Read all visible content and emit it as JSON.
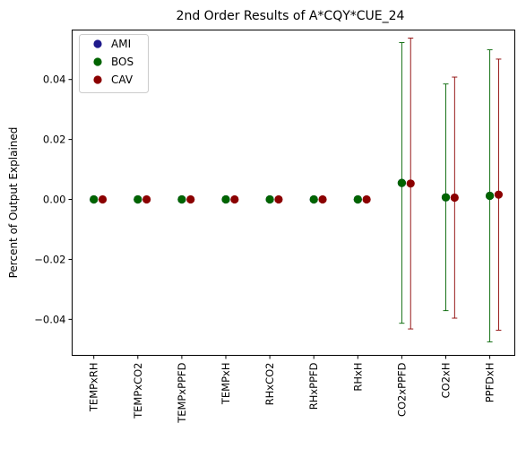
{
  "chart_data": {
    "type": "scatter",
    "title": "2nd Order Results of A*CQY*CUE_24",
    "xlabel": "",
    "ylabel": "Percent of Output Explained",
    "categories": [
      "TEMPxRH",
      "TEMPxCO2",
      "TEMPxPPFD",
      "TEMPxH",
      "RHxCO2",
      "RHxPPFD",
      "RHxH",
      "CO2xPPFD",
      "CO2xH",
      "PPFDxH"
    ],
    "ylim": [
      -0.052,
      0.0565
    ],
    "yticks": [
      -0.04,
      -0.02,
      0.0,
      0.02,
      0.04
    ],
    "ytick_labels": [
      "−0.04",
      "−0.02",
      "0.00",
      "0.02",
      "0.04"
    ],
    "grid": false,
    "legend_position": "top-left",
    "series": [
      {
        "name": "AMI",
        "color": "#1f1a8c",
        "values": [
          0,
          0,
          0,
          0,
          0,
          0,
          0,
          0.0055,
          0.0007,
          0.0012
        ],
        "error": [
          0,
          0,
          0,
          0,
          0,
          0,
          0,
          0,
          0,
          0
        ],
        "offset": 0
      },
      {
        "name": "BOS",
        "color": "#006400",
        "values": [
          0,
          0,
          0,
          0,
          0,
          0,
          0,
          0.0055,
          0.0007,
          0.0012
        ],
        "error": [
          0,
          0,
          0,
          0,
          0,
          0,
          0,
          0.0468,
          0.0378,
          0.0487
        ],
        "offset": 0
      },
      {
        "name": "CAV",
        "color": "#8b0000",
        "values": [
          0,
          0,
          0,
          0,
          0,
          0,
          0,
          0.0053,
          0.0006,
          0.0016
        ],
        "error": [
          0,
          0,
          0,
          0,
          0,
          0,
          0,
          0.0485,
          0.0402,
          0.0452
        ],
        "offset": 0.2
      }
    ]
  }
}
